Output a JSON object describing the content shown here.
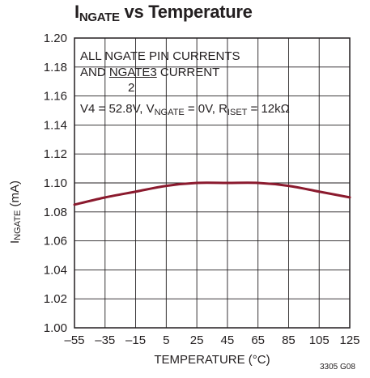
{
  "title": {
    "main": "I",
    "sub": "NGATE",
    "rest": " vs Temperature"
  },
  "notes": {
    "line1": "ALL NGATE PIN CURRENTS",
    "line2_prefix": "AND ",
    "line2_num": "NGATE3",
    "line2_suffix": " CURRENT",
    "line2_denom": "2",
    "cond": {
      "a": "V4 = 52.8V, V",
      "a_sub": "NGATE",
      "b": " = 0V, R",
      "b_sub": "ISET",
      "c": " = 12kΩ"
    }
  },
  "figure_code": "3305 G08",
  "chart_data": {
    "type": "line",
    "title": "INGATE vs Temperature",
    "xlabel": "TEMPERATURE (°C)",
    "ylabel": {
      "main": "I",
      "sub": "NGATE",
      "rest": " (mA)"
    },
    "xlim": [
      -55,
      125
    ],
    "ylim": [
      1.0,
      1.2
    ],
    "xticks": [
      -55,
      -35,
      -15,
      5,
      25,
      45,
      65,
      85,
      105,
      125
    ],
    "yticks": [
      "1.00",
      "1.02",
      "1.04",
      "1.06",
      "1.08",
      "1.10",
      "1.12",
      "1.14",
      "1.16",
      "1.18",
      "1.20"
    ],
    "grid": true,
    "line_color": "#8b1a2e",
    "series": [
      {
        "x": [
          -55,
          -35,
          -15,
          5,
          25,
          45,
          65,
          85,
          105,
          125
        ],
        "values": [
          1.085,
          1.09,
          1.094,
          1.098,
          1.1,
          1.1,
          1.1,
          1.098,
          1.094,
          1.09
        ]
      }
    ]
  }
}
